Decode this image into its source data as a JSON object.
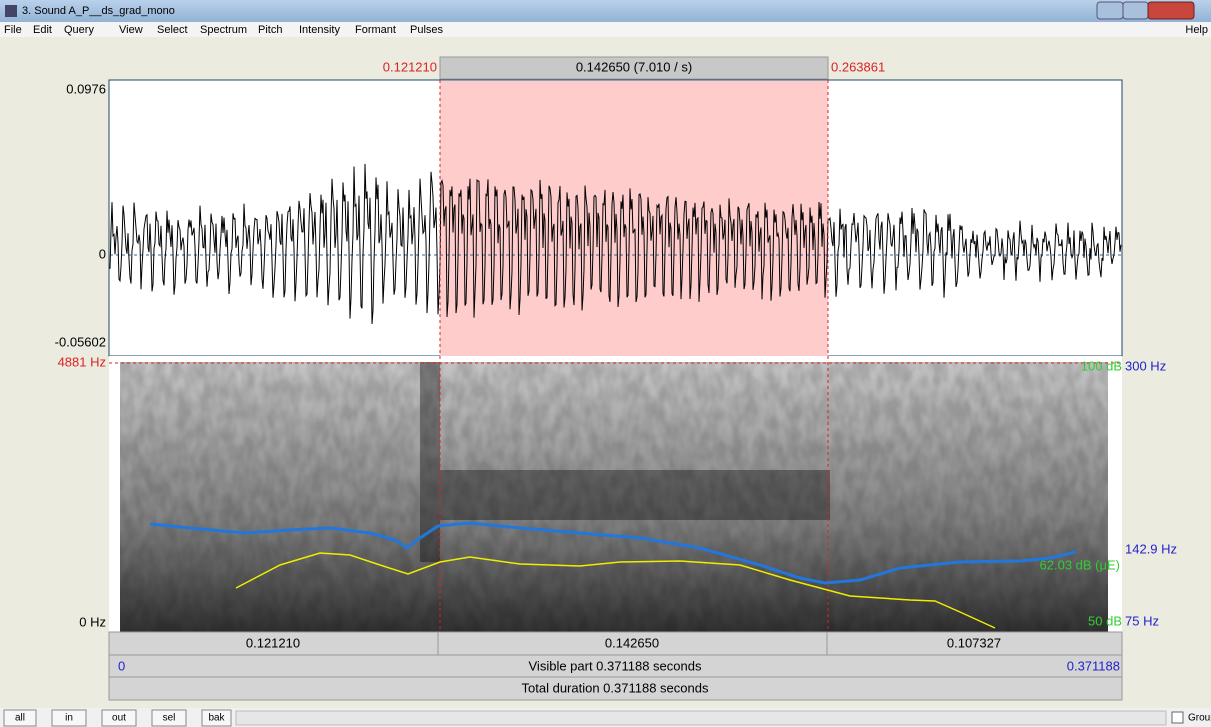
{
  "window": {
    "title": "3. Sound A_P__ds_grad_mono"
  },
  "menu": [
    "File",
    "Edit",
    "Query",
    "View",
    "Select",
    "Spectrum",
    "Pitch",
    "Intensity",
    "Formant",
    "Pulses"
  ],
  "help": "Help",
  "selection": {
    "start": "0.121210",
    "duration": "0.142650 (7.010 / s)",
    "end": "0.263861"
  },
  "waveform": {
    "max": "0.0976",
    "zero": "0",
    "min": "-0.05602"
  },
  "spectrogram": {
    "top": "4881 Hz",
    "bottom": "0 Hz"
  },
  "right_axis": {
    "intensity_top": "100 dB",
    "pitch_top": "300 Hz",
    "pitch_cursor": "142.9 Hz",
    "intensity_cursor": "62.03 dB (μE)",
    "intensity_bottom": "50 dB",
    "pitch_bottom": "75 Hz"
  },
  "segments": [
    "0.121210",
    "0.142650",
    "0.107327"
  ],
  "visible": {
    "start": "0",
    "label": "Visible part 0.371188 seconds",
    "end": "0.371188"
  },
  "total": "Total duration 0.371188 seconds",
  "buttons": [
    "all",
    "in",
    "out",
    "sel",
    "bak"
  ],
  "group": "Group"
}
